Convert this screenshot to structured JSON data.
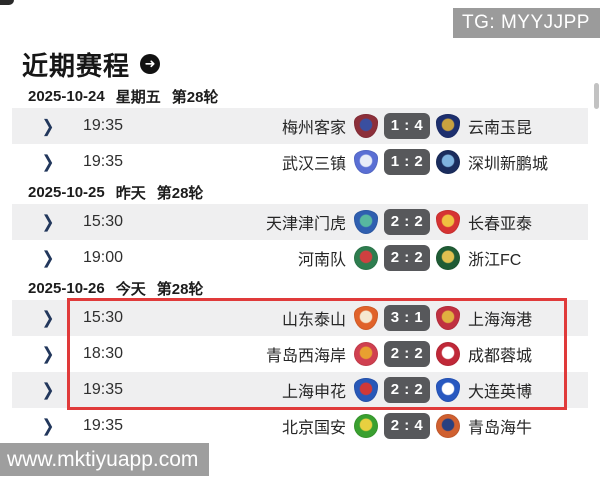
{
  "watermarks": {
    "tg": "TG: MYYJJPP",
    "site": "www.mktiyuapp.com"
  },
  "header": {
    "title": "近期赛程",
    "arrow_icon": "➜"
  },
  "colors": {
    "highlight_red": "#e03a3a",
    "score_badge_bg": "#57585b",
    "row_alt_bg": "#efeff0",
    "watermark_gray": "#9b9b9b"
  },
  "chevron_glyph": "❯",
  "sections": [
    {
      "date": "2025-10-24",
      "day": "星期五",
      "round": "第28轮",
      "matches": [
        {
          "time": "19:35",
          "home": "梅州客家",
          "score": "1 : 4",
          "away": "云南玉昆",
          "home_logo": {
            "shape": "shield",
            "colors": [
              "#8c2f3a",
              "#3a4fa0"
            ]
          },
          "away_logo": {
            "shape": "shield",
            "colors": [
              "#1d2f6e",
              "#c9a23f"
            ]
          }
        },
        {
          "time": "19:35",
          "home": "武汉三镇",
          "score": "1 : 2",
          "away": "深圳新鹏城",
          "home_logo": {
            "shape": "shield",
            "colors": [
              "#5a6fd4",
              "#e8ecf8"
            ]
          },
          "away_logo": {
            "shape": "circle",
            "colors": [
              "#1b2d5e",
              "#7fb3e0"
            ]
          }
        }
      ]
    },
    {
      "date": "2025-10-25",
      "day": "昨天",
      "round": "第28轮",
      "matches": [
        {
          "time": "15:30",
          "home": "天津津门虎",
          "score": "2 : 2",
          "away": "长春亚泰",
          "home_logo": {
            "shape": "shield",
            "colors": [
              "#2f5fb0",
              "#57b8a0"
            ]
          },
          "away_logo": {
            "shape": "shield",
            "colors": [
              "#d63333",
              "#f0c040"
            ]
          }
        },
        {
          "time": "19:00",
          "home": "河南队",
          "score": "2 : 2",
          "away": "浙江FC",
          "home_logo": {
            "shape": "circle",
            "colors": [
              "#2e7d4f",
              "#d04040"
            ]
          },
          "away_logo": {
            "shape": "circle",
            "colors": [
              "#1f5c35",
              "#e0c050"
            ]
          }
        }
      ]
    },
    {
      "date": "2025-10-26",
      "day": "今天",
      "round": "第28轮",
      "matches": [
        {
          "time": "15:30",
          "home": "山东泰山",
          "score": "3 : 1",
          "away": "上海海港",
          "highlighted": true,
          "home_logo": {
            "shape": "shield",
            "colors": [
              "#e0622a",
              "#f5e8d0"
            ]
          },
          "away_logo": {
            "shape": "shield",
            "colors": [
              "#c03040",
              "#e0b040"
            ]
          }
        },
        {
          "time": "18:30",
          "home": "青岛西海岸",
          "score": "2 : 2",
          "away": "成都蓉城",
          "highlighted": true,
          "home_logo": {
            "shape": "circle",
            "colors": [
              "#d04050",
              "#e8a030"
            ]
          },
          "away_logo": {
            "shape": "circle",
            "colors": [
              "#c02838",
              "#ffffff"
            ]
          }
        },
        {
          "time": "19:35",
          "home": "上海申花",
          "score": "2 : 2",
          "away": "大连英博",
          "highlighted": true,
          "home_logo": {
            "shape": "shield",
            "colors": [
              "#2858b8",
              "#d03838"
            ]
          },
          "away_logo": {
            "shape": "shield",
            "colors": [
              "#2858c0",
              "#ffffff"
            ]
          }
        },
        {
          "time": "19:35",
          "home": "北京国安",
          "score": "2 : 4",
          "away": "青岛海牛",
          "highlighted": false,
          "home_logo": {
            "shape": "circle",
            "colors": [
              "#3aa030",
              "#e8d040"
            ]
          },
          "away_logo": {
            "shape": "circle",
            "colors": [
              "#d06030",
              "#284080"
            ]
          }
        }
      ]
    }
  ]
}
